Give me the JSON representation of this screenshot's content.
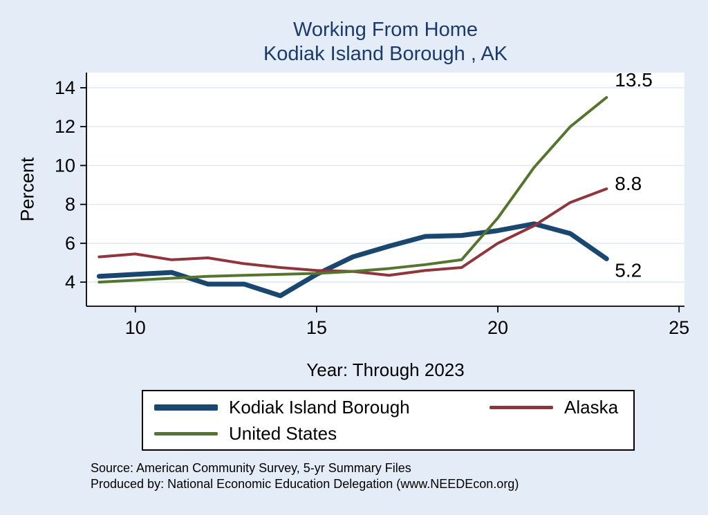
{
  "title": {
    "line1": "Working From Home",
    "line2": "Kodiak Island Borough , AK"
  },
  "chart_data": {
    "type": "line",
    "title": "Working From Home Kodiak Island Borough , AK",
    "xlabel": "Year: Through 2023",
    "ylabel": "Percent",
    "x": [
      9,
      10,
      11,
      12,
      13,
      14,
      15,
      16,
      17,
      18,
      19,
      20,
      21,
      22,
      23
    ],
    "series": [
      {
        "name": "Kodiak Island Borough",
        "color": "#1a476f",
        "width": 7,
        "values": [
          4.3,
          4.4,
          4.5,
          3.9,
          3.9,
          3.3,
          4.4,
          5.3,
          5.85,
          6.35,
          6.4,
          6.65,
          7.0,
          6.5,
          5.2
        ],
        "end_label": "5.2"
      },
      {
        "name": "Alaska",
        "color": "#90353b",
        "width": 4,
        "values": [
          5.3,
          5.45,
          5.15,
          5.25,
          4.95,
          4.75,
          4.6,
          4.55,
          4.35,
          4.6,
          4.75,
          6.0,
          6.9,
          8.1,
          8.8
        ],
        "end_label": "8.8"
      },
      {
        "name": "United States",
        "color": "#55752f",
        "width": 4,
        "values": [
          4.0,
          4.1,
          4.2,
          4.3,
          4.35,
          4.4,
          4.45,
          4.55,
          4.7,
          4.9,
          5.15,
          7.3,
          9.9,
          12.0,
          13.5
        ],
        "end_label": "13.5"
      }
    ],
    "xticks": [
      10,
      15,
      20,
      25
    ],
    "yticks": [
      4,
      6,
      8,
      10,
      12,
      14
    ],
    "xlim": [
      8.65,
      25.15
    ],
    "ylim": [
      2.76,
      14.78
    ],
    "grid": true,
    "legend_position": "bottom"
  },
  "legend": {
    "items": [
      {
        "label": "Kodiak Island Borough",
        "color": "#1a476f",
        "thickness": 9
      },
      {
        "label": "Alaska",
        "color": "#90353b",
        "thickness": 5
      },
      {
        "label": "United States",
        "color": "#55752f",
        "thickness": 5
      }
    ]
  },
  "footer": {
    "source": "Source: American Community Survey, 5-yr Summary Files",
    "produced": "Produced by: National Economic Education Delegation (www.NEEDEcon.org)"
  },
  "colors": {
    "background": "#e4edf7",
    "plot_background": "#ffffff",
    "grid": "#dce7f3",
    "axis": "#000000",
    "title": "#1b3a6b"
  }
}
